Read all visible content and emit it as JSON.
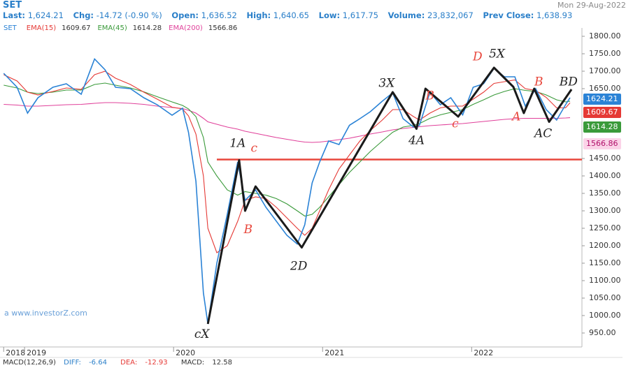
{
  "header": {
    "title": "SET",
    "date": "Mon 29-Aug-2022",
    "stats": [
      {
        "label": "Last:",
        "value": "1,624.21"
      },
      {
        "label": "Chg:",
        "value": "-14.72 (-0.90 %)"
      },
      {
        "label": "Open:",
        "value": "1,636.52"
      },
      {
        "label": "High:",
        "value": "1,640.65"
      },
      {
        "label": "Low:",
        "value": "1,617.75"
      },
      {
        "label": "Volume:",
        "value": "23,832,067"
      },
      {
        "label": "Prev Close:",
        "value": "1,638.93"
      }
    ]
  },
  "watermark": "a www.investorZ.com",
  "macd": {
    "title": "MACD(12,26,9)",
    "items": [
      {
        "label": "DIFF:",
        "value": -6.64
      },
      {
        "label": "DEA:",
        "value": -12.93
      },
      {
        "label": "MACD:",
        "value": 12.58
      }
    ]
  },
  "chart_data": {
    "type": "line",
    "x": [
      2018.86,
      2018.95,
      2019.02,
      2019.09,
      2019.19,
      2019.28,
      2019.38,
      2019.47,
      2019.54,
      2019.61,
      2019.71,
      2019.8,
      2019.89,
      2019.99,
      2020.06,
      2020.1,
      2020.15,
      2020.2,
      2020.23,
      2020.29,
      2020.36,
      2020.43,
      2020.48,
      2020.55,
      2020.62,
      2020.69,
      2020.76,
      2020.83,
      2020.88,
      2020.93,
      2020.98,
      2021.04,
      2021.11,
      2021.18,
      2021.25,
      2021.32,
      2021.4,
      2021.47,
      2021.54,
      2021.61,
      2021.65,
      2021.72,
      2021.79,
      2021.86,
      2021.94,
      2022.01,
      2022.08,
      2022.15,
      2022.22,
      2022.29,
      2022.36,
      2022.43,
      2022.5,
      2022.57,
      2022.63,
      2022.66
    ],
    "series": [
      {
        "name": "SET",
        "color": "#2b83d6",
        "values": [
          1694,
          1654,
          1580,
          1624,
          1654,
          1664,
          1634,
          1735,
          1704,
          1654,
          1650,
          1624,
          1604,
          1574,
          1594,
          1525,
          1385,
          1065,
          976,
          1150,
          1290,
          1440,
          1330,
          1360,
          1310,
          1270,
          1230,
          1205,
          1260,
          1380,
          1440,
          1500,
          1490,
          1545,
          1564,
          1584,
          1614,
          1638,
          1564,
          1540,
          1545,
          1640,
          1604,
          1624,
          1575,
          1654,
          1664,
          1708,
          1684,
          1684,
          1600,
          1650,
          1590,
          1560,
          1604,
          1624.21
        ]
      },
      {
        "name": "EMA(15)",
        "color": "#e53935",
        "values": [
          1690,
          1672,
          1640,
          1632,
          1642,
          1652,
          1648,
          1690,
          1700,
          1680,
          1662,
          1640,
          1620,
          1597,
          1592,
          1572,
          1520,
          1400,
          1250,
          1180,
          1200,
          1270,
          1330,
          1340,
          1335,
          1310,
          1280,
          1250,
          1230,
          1250,
          1300,
          1360,
          1420,
          1460,
          1500,
          1530,
          1560,
          1590,
          1590,
          1570,
          1560,
          1580,
          1595,
          1600,
          1600,
          1620,
          1640,
          1665,
          1670,
          1675,
          1650,
          1645,
          1625,
          1595,
          1595,
          1609.67
        ]
      },
      {
        "name": "EMA(45)",
        "color": "#3a9a3a",
        "values": [
          1660,
          1652,
          1640,
          1636,
          1640,
          1646,
          1646,
          1662,
          1666,
          1660,
          1652,
          1641,
          1627,
          1612,
          1602,
          1592,
          1570,
          1510,
          1440,
          1400,
          1360,
          1345,
          1355,
          1350,
          1345,
          1335,
          1320,
          1300,
          1285,
          1290,
          1310,
          1340,
          1375,
          1410,
          1440,
          1470,
          1500,
          1525,
          1540,
          1545,
          1550,
          1565,
          1575,
          1582,
          1590,
          1605,
          1618,
          1632,
          1642,
          1650,
          1645,
          1642,
          1632,
          1618,
          1612,
          1614.28
        ]
      },
      {
        "name": "EMA(200)",
        "color": "#e0409a",
        "values": [
          1605,
          1603,
          1600,
          1600,
          1602,
          1604,
          1605,
          1608,
          1610,
          1610,
          1608,
          1605,
          1600,
          1596,
          1593,
          1588,
          1580,
          1565,
          1555,
          1548,
          1540,
          1534,
          1528,
          1522,
          1516,
          1510,
          1505,
          1500,
          1497,
          1496,
          1497,
          1500,
          1504,
          1508,
          1514,
          1520,
          1526,
          1532,
          1536,
          1539,
          1541,
          1544,
          1546,
          1548,
          1550,
          1553,
          1556,
          1559,
          1562,
          1564,
          1565,
          1565,
          1565,
          1565,
          1566,
          1566.86
        ]
      }
    ],
    "xlim": [
      2018.84,
      2022.74
    ],
    "xticks": [
      {
        "value": 2018.86,
        "label": "2018"
      },
      2019,
      2020,
      2021,
      2022
    ],
    "ylim": [
      914,
      1824
    ],
    "yticks": [
      {
        "value": 950,
        "label": "950.00"
      },
      {
        "value": 1000,
        "label": "1000.00"
      },
      {
        "value": 1050,
        "label": "1050.00"
      },
      {
        "value": 1100,
        "label": "1100.00"
      },
      {
        "value": 1150,
        "label": "1150.00"
      },
      {
        "value": 1200,
        "label": "1200.00"
      },
      {
        "value": 1250,
        "label": "1250.00"
      },
      {
        "value": 1300,
        "label": "1300.00"
      },
      {
        "value": 1350,
        "label": "1350.00"
      },
      {
        "value": 1400,
        "label": "1400.00"
      },
      {
        "value": 1450,
        "label": "1450.00"
      },
      {
        "value": 1650,
        "label": "1650.00"
      },
      {
        "value": 1700,
        "label": "1700.00"
      },
      {
        "value": 1750,
        "label": "1750.00"
      },
      {
        "value": 1800,
        "label": "1800.00"
      }
    ],
    "hline": {
      "value": 1447,
      "color": "#e8473c"
    },
    "zigzag": {
      "color": "#1a1a1a",
      "x": [
        2020.23,
        2020.44,
        2020.48,
        2020.55,
        2020.86,
        2021.47,
        2021.63,
        2021.69,
        2021.91,
        2022.15,
        2022.28,
        2022.35,
        2022.42,
        2022.52,
        2022.67
      ],
      "y": [
        976,
        1445,
        1300,
        1370,
        1195,
        1640,
        1535,
        1650,
        1570,
        1710,
        1655,
        1580,
        1650,
        1555,
        1648
      ]
    },
    "annotations": [
      {
        "text": "1A",
        "x": 2020.43,
        "y": 1492,
        "color": "#222"
      },
      {
        "text": "c",
        "x": 2020.54,
        "y": 1478,
        "color": "#e8473c"
      },
      {
        "text": "B",
        "x": 2020.5,
        "y": 1245,
        "color": "#e8473c"
      },
      {
        "text": "2D",
        "x": 2020.84,
        "y": 1140,
        "color": "#222"
      },
      {
        "text": "cX",
        "x": 2020.19,
        "y": 945,
        "color": "#222"
      },
      {
        "text": "3X",
        "x": 2021.43,
        "y": 1664,
        "color": "#222"
      },
      {
        "text": "B",
        "x": 2021.72,
        "y": 1628,
        "color": "#e8473c"
      },
      {
        "text": "4A",
        "x": 2021.63,
        "y": 1500,
        "color": "#222"
      },
      {
        "text": "c",
        "x": 2021.89,
        "y": 1548,
        "color": "#e8473c"
      },
      {
        "text": "D",
        "x": 2022.04,
        "y": 1740,
        "color": "#e8473c"
      },
      {
        "text": "5X",
        "x": 2022.17,
        "y": 1748,
        "color": "#222"
      },
      {
        "text": "A",
        "x": 2022.3,
        "y": 1568,
        "color": "#e8473c"
      },
      {
        "text": "B",
        "x": 2022.45,
        "y": 1668,
        "color": "#e8473c"
      },
      {
        "text": "AC",
        "x": 2022.48,
        "y": 1520,
        "color": "#222"
      },
      {
        "text": "BD",
        "x": 2022.65,
        "y": 1668,
        "color": "#222"
      }
    ]
  }
}
